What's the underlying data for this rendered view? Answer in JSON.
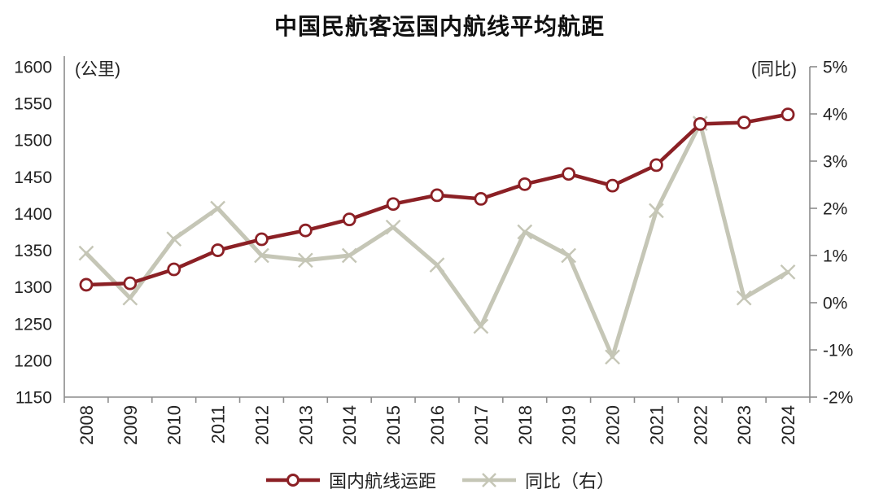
{
  "header": {
    "title": "中国民航客运国内航线平均航距"
  },
  "axes": {
    "left_unit": "(公里)",
    "right_unit": "(同比)"
  },
  "legend": {
    "items": [
      {
        "label": "国内航线运距"
      },
      {
        "label": "同比（右）"
      }
    ]
  },
  "chart_data": {
    "type": "line",
    "title": "中国民航客运国内航线平均航距",
    "categories": [
      "2008",
      "2009",
      "2010",
      "2011",
      "2012",
      "2013",
      "2014",
      "2015",
      "2016",
      "2017",
      "2018",
      "2019",
      "2020",
      "2021",
      "2022",
      "2023",
      "2024"
    ],
    "series": [
      {
        "name": "国内航线运距",
        "yaxis": "left",
        "marker": "circle",
        "color": "#8b2025",
        "values": [
          1303,
          1305,
          1324,
          1350,
          1365,
          1377,
          1392,
          1413,
          1425,
          1420,
          1440,
          1454,
          1438,
          1466,
          1522,
          1524,
          1535
        ]
      },
      {
        "name": "同比（右）",
        "yaxis": "right",
        "marker": "x",
        "color": "#c5c6b6",
        "values": [
          1.05,
          0.1,
          1.35,
          2.0,
          1.0,
          0.9,
          1.0,
          1.6,
          0.8,
          -0.5,
          1.5,
          1.0,
          -1.15,
          1.95,
          3.8,
          0.1,
          0.65
        ]
      }
    ],
    "left_axis": {
      "unit": "(公里)",
      "min": 1150,
      "max": 1600,
      "step": 50,
      "tick_labels": [
        "1600",
        "1550",
        "1500",
        "1450",
        "1400",
        "1350",
        "1300",
        "1250",
        "1200",
        "1150"
      ]
    },
    "right_axis": {
      "unit": "(同比)",
      "min": -2,
      "max": 5,
      "step": 1,
      "tick_labels": [
        "5%",
        "4%",
        "3%",
        "2%",
        "1%",
        "0%",
        "-1%",
        "-2%"
      ]
    },
    "x_label_rotation": -90,
    "grid": false,
    "legend_position": "bottom",
    "axis_color": "#8c8c8c",
    "text_color": "#222222"
  }
}
